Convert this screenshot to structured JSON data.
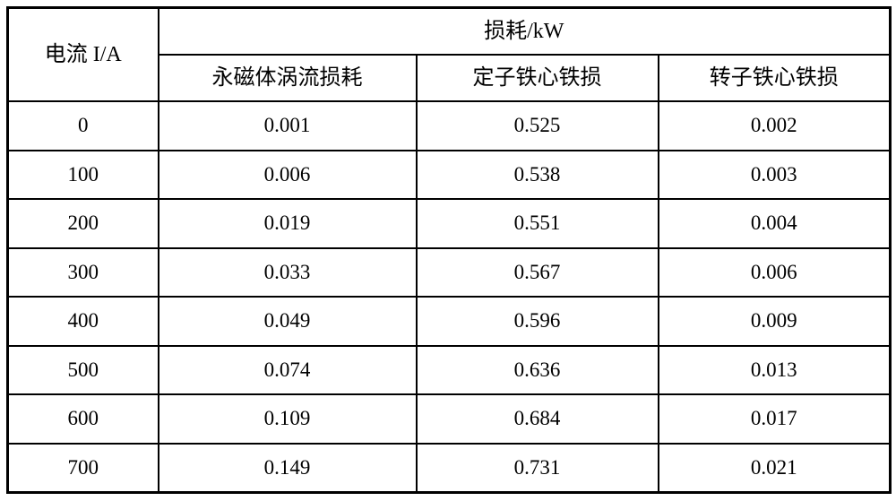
{
  "table": {
    "current_header": "电流 I/A",
    "loss_group_header": "损耗/kW",
    "sub_headers": [
      "永磁体涡流损耗",
      "定子铁心铁损",
      "转子铁心铁损"
    ],
    "rows": [
      [
        "0",
        "0.001",
        "0.525",
        "0.002"
      ],
      [
        "100",
        "0.006",
        "0.538",
        "0.003"
      ],
      [
        "200",
        "0.019",
        "0.551",
        "0.004"
      ],
      [
        "300",
        "0.033",
        "0.567",
        "0.006"
      ],
      [
        "400",
        "0.049",
        "0.596",
        "0.009"
      ],
      [
        "500",
        "0.074",
        "0.636",
        "0.013"
      ],
      [
        "600",
        "0.109",
        "0.684",
        "0.017"
      ],
      [
        "700",
        "0.149",
        "0.731",
        "0.021"
      ]
    ],
    "colors": {
      "text": "#000000",
      "border": "#000000",
      "background": "#ffffff"
    }
  }
}
